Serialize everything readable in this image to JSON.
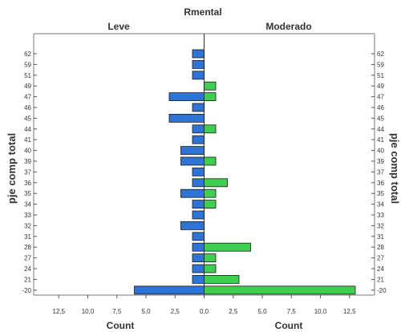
{
  "chart_data": {
    "type": "bar",
    "orientation": "horizontal-back-to-back",
    "title": "Rmental",
    "panels": [
      "Leve",
      "Moderado"
    ],
    "ylabel": "pje comp total",
    "xlabel_left": "Count",
    "xlabel_right": "Count",
    "x_ticks": [
      "0,0",
      "2,5",
      "5,0",
      "7,5",
      "10,0",
      "12,5"
    ],
    "xlim": [
      0,
      13.2
    ],
    "categories": [
      "62",
      "59",
      "51",
      "49",
      "47",
      "46",
      "45",
      "44",
      "41",
      "40",
      "39",
      "37",
      "36",
      "35",
      "34",
      "33",
      "32",
      "31",
      "28",
      "27",
      "24",
      "21",
      "-20"
    ],
    "series": [
      {
        "name": "Leve",
        "color": "#2e73d6",
        "values": [
          1,
          1,
          1,
          0,
          3,
          1,
          3,
          1,
          1,
          2,
          2,
          1,
          1,
          2,
          1,
          1,
          2,
          1,
          1,
          1,
          1,
          1,
          6
        ]
      },
      {
        "name": "Moderado",
        "color": "#3fcf4f",
        "values": [
          0,
          0,
          0,
          1,
          1,
          0,
          0,
          1,
          0,
          0,
          1,
          0,
          2,
          1,
          1,
          0,
          0,
          0,
          4,
          1,
          1,
          3,
          13
        ]
      }
    ],
    "grid": false,
    "legend": "none"
  }
}
